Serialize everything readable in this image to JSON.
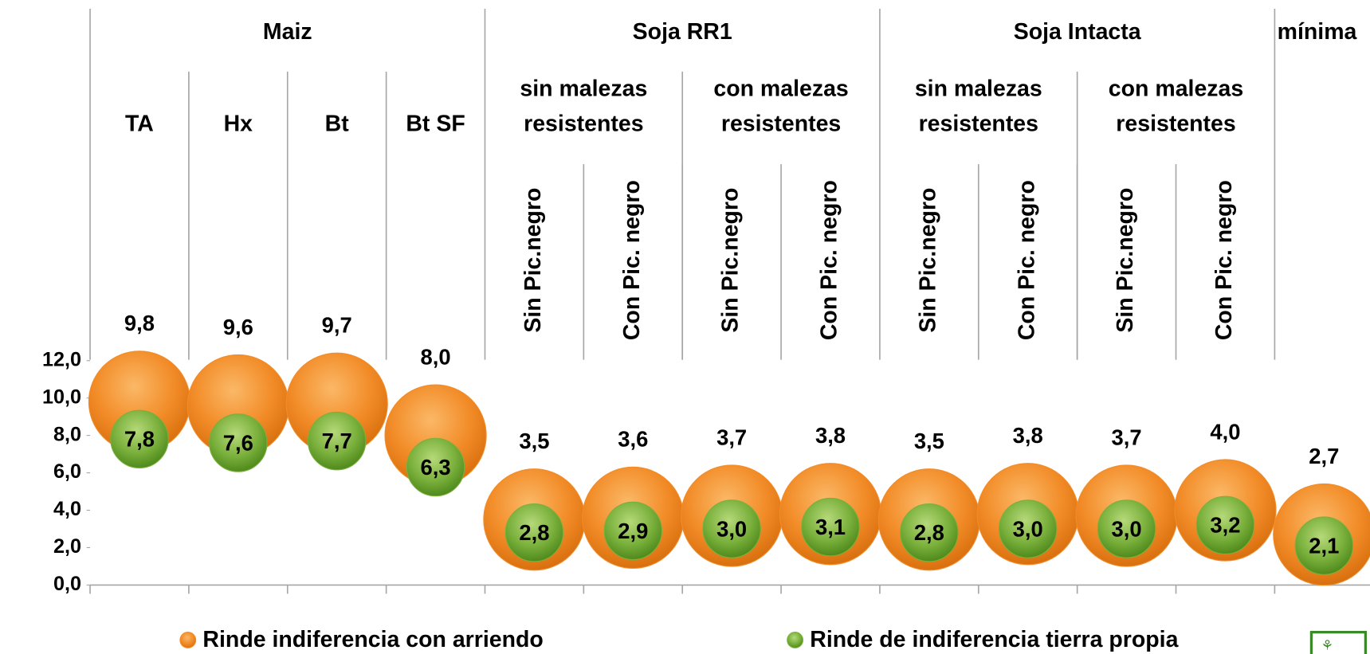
{
  "chart_data": {
    "type": "bubble",
    "groups": [
      {
        "name": "Maiz",
        "columns": [
          "TA",
          "Hx",
          "Bt",
          "Bt SF"
        ]
      },
      {
        "name": "Soja RR1",
        "subgroups": [
          {
            "name": [
              "sin malezas",
              "resistentes"
            ],
            "columns": [
              "Sin Pic.negro",
              "Con Pic. negro"
            ]
          },
          {
            "name": [
              "con malezas",
              "resistentes"
            ],
            "columns": [
              "Sin Pic.negro",
              "Con Pic. negro"
            ]
          }
        ]
      },
      {
        "name": "Soja Intacta",
        "subgroups": [
          {
            "name": [
              "sin malezas",
              "resistentes"
            ],
            "columns": [
              "Sin Pic.negro",
              "Con Pic. negro"
            ]
          },
          {
            "name": [
              "con malezas",
              "resistentes"
            ],
            "columns": [
              "Sin Pic.negro",
              "Con Pic. negro"
            ]
          }
        ]
      },
      {
        "name": "mínima",
        "columns": [
          null
        ]
      }
    ],
    "series": [
      {
        "name": "Rinde indiferencia con arriendo",
        "color": "#f28c28",
        "values": [
          9.8,
          9.6,
          9.7,
          8.0,
          3.5,
          3.6,
          3.7,
          3.8,
          3.5,
          3.8,
          3.7,
          4.0,
          2.7
        ],
        "value_labels": [
          "9,8",
          "9,6",
          "9,7",
          "8,0",
          "3,5",
          "3,6",
          "3,7",
          "3,8",
          "3,5",
          "3,8",
          "3,7",
          "4,0",
          "2,7"
        ]
      },
      {
        "name": "Rinde de indiferencia tierra propia",
        "color": "#7ab03c",
        "values": [
          7.8,
          7.6,
          7.7,
          6.3,
          2.8,
          2.9,
          3.0,
          3.1,
          2.8,
          3.0,
          3.0,
          3.2,
          2.1
        ],
        "value_labels": [
          "7,8",
          "7,6",
          "7,7",
          "6,3",
          "2,8",
          "2,9",
          "3,0",
          "3,1",
          "2,8",
          "3,0",
          "3,0",
          "3,2",
          "2,1"
        ]
      }
    ],
    "ylim": [
      0,
      12
    ],
    "yticks": [
      {
        "value": 0,
        "label": "0,0"
      },
      {
        "value": 2,
        "label": "2,0"
      },
      {
        "value": 4,
        "label": "4,0"
      },
      {
        "value": 6,
        "label": "6,0"
      },
      {
        "value": 8,
        "label": "8,0"
      },
      {
        "value": 10,
        "label": "10,0"
      },
      {
        "value": 12,
        "label": "12,0"
      }
    ]
  }
}
